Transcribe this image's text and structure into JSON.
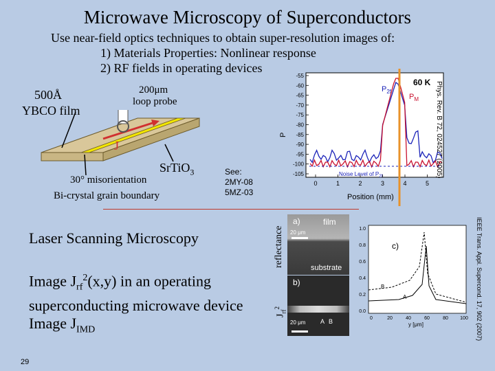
{
  "slide": {
    "title": "Microwave Microscopy of Superconductors",
    "intro_line1": "Use near-field optics techniques to obtain super-resolution images of:",
    "intro_line2": "1) Materials Properties: Nonlinear response",
    "intro_line3": "2) RF fields in operating devices",
    "page_number": "29"
  },
  "left_figure": {
    "film_line1": "500Å",
    "film_line2": "YBCO film",
    "probe_line1": "200μm",
    "probe_line2": "loop probe",
    "current_label": "J",
    "substrate_label": "Sr",
    "substrate_ti": "TiO",
    "substrate_sub": "3",
    "boundary_line1": "30° misorientation",
    "boundary_line2": "Bi-crystal grain boundary",
    "see_label": "See:",
    "see_ref1": "2MY-08",
    "see_ref2": "5MZ-03"
  },
  "plot": {
    "temperature": "60 K",
    "series_p2f": "P",
    "series_p2f_sub": "2f",
    "series_pm": "P",
    "series_pm_sub": "M",
    "noise_level": "Noise Level of P",
    "noise_level_sub": "2f",
    "ylabel": "P",
    "xlabel": "Position (mm)",
    "xticks": [
      "0",
      "1",
      "2",
      "3",
      "4",
      "5"
    ],
    "yticks": [
      "-55",
      "-60",
      "-65",
      "-70",
      "-75",
      "-80",
      "-85",
      "-90",
      "-95",
      "-100",
      "-105"
    ],
    "citation": "Phys. Rev. B 72, 024527 (2005)"
  },
  "lsm": {
    "heading": "Laser Scanning Microscopy",
    "line1_pre": "Image J",
    "line1_sub": "rf",
    "line1_sup": "2",
    "line1_post": "(x,y) in an operating",
    "line2": "superconducting microwave device",
    "line3_pre": "Image J",
    "line3_sub": "IMD"
  },
  "lsm_figure": {
    "panel_a": "a)",
    "film_label": "film",
    "scale_a": "20 μm",
    "substrate_label": "substrate",
    "panel_b": "b)",
    "scale_b": "20 μm",
    "mark_a": "A",
    "mark_b": "B",
    "side_label_top": "reflectance",
    "side_label_bottom": "J",
    "side_label_bottom_sub": "rf",
    "side_label_bottom_sup": "2",
    "panel_c": "c)",
    "c_mark_a": "A",
    "c_mark_b": "B",
    "c_yticks": [
      "1.0",
      "0.8",
      "0.6",
      "0.4",
      "0.2",
      "0.0"
    ],
    "c_xticks": [
      "0",
      "20",
      "40",
      "60",
      "80",
      "100"
    ],
    "c_xlabel": "y [μm]",
    "citation": "IEEE Trans. Appl. Supercond. 17, 902 (2007)"
  },
  "colors": {
    "background": "#b9cbe4",
    "film": "#d9c79a",
    "strip": "#f2e600",
    "p2f": "#1a22b8",
    "pm": "#c8102e",
    "orange_line": "#e8922a",
    "divider": "#c0392b"
  }
}
